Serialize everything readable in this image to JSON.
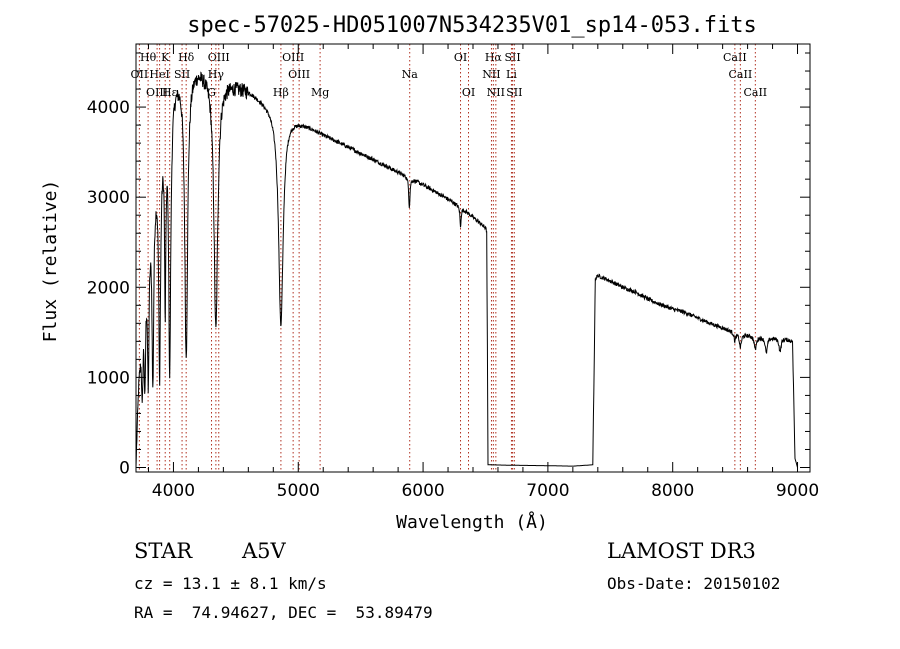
{
  "chart_data": {
    "type": "line",
    "title": "spec-57025-HD051007N534235V01_sp14-053.fits",
    "xlabel": "Wavelength (Å)",
    "ylabel": "Flux (relative)",
    "xlim": [
      3700,
      9100
    ],
    "ylim": [
      -50,
      4700
    ],
    "xticks": [
      4000,
      5000,
      6000,
      7000,
      8000,
      9000
    ],
    "yticks": [
      0,
      1000,
      2000,
      3000,
      4000
    ],
    "grid": false,
    "continuum": [
      [
        3700,
        0
      ],
      [
        3720,
        900
      ],
      [
        3760,
        1800
      ],
      [
        3800,
        2600
      ],
      [
        3840,
        3100
      ],
      [
        3880,
        3500
      ],
      [
        3920,
        3800
      ],
      [
        3960,
        4100
      ],
      [
        4000,
        4300
      ],
      [
        4050,
        4400
      ],
      [
        4100,
        4450
      ],
      [
        4200,
        4450
      ],
      [
        4300,
        4380
      ],
      [
        4400,
        4300
      ],
      [
        4500,
        4250
      ],
      [
        4600,
        4200
      ],
      [
        4700,
        4100
      ],
      [
        4800,
        4000
      ],
      [
        4900,
        3920
      ],
      [
        5000,
        3850
      ],
      [
        5100,
        3780
      ],
      [
        5200,
        3700
      ],
      [
        5300,
        3630
      ],
      [
        5400,
        3560
      ],
      [
        5500,
        3490
      ],
      [
        5600,
        3420
      ],
      [
        5700,
        3350
      ],
      [
        5800,
        3280
      ],
      [
        5900,
        3210
      ],
      [
        6000,
        3140
      ],
      [
        6100,
        3060
      ],
      [
        6200,
        2980
      ],
      [
        6300,
        2890
      ],
      [
        6400,
        2780
      ],
      [
        6500,
        2660
      ],
      [
        6510,
        2620
      ],
      [
        6520,
        30
      ],
      [
        6700,
        25
      ],
      [
        7000,
        20
      ],
      [
        7200,
        15
      ],
      [
        7360,
        30
      ],
      [
        7380,
        2100
      ],
      [
        7400,
        2130
      ],
      [
        7500,
        2070
      ],
      [
        7600,
        2000
      ],
      [
        7700,
        1950
      ],
      [
        7800,
        1870
      ],
      [
        7900,
        1810
      ],
      [
        8000,
        1760
      ],
      [
        8100,
        1720
      ],
      [
        8200,
        1660
      ],
      [
        8300,
        1600
      ],
      [
        8400,
        1550
      ],
      [
        8500,
        1500
      ],
      [
        8600,
        1470
      ],
      [
        8700,
        1450
      ],
      [
        8800,
        1440
      ],
      [
        8900,
        1430
      ],
      [
        8960,
        1400
      ],
      [
        8980,
        100
      ],
      [
        9000,
        0
      ]
    ],
    "absorption": [
      {
        "center": 3750,
        "depth": 0.55,
        "width": 6
      },
      {
        "center": 3771,
        "depth": 0.6,
        "width": 6
      },
      {
        "center": 3798,
        "depth": 0.65,
        "width": 7
      },
      {
        "center": 3835,
        "depth": 0.7,
        "width": 8
      },
      {
        "center": 3889,
        "depth": 0.72,
        "width": 9
      },
      {
        "center": 3934,
        "depth": 0.55,
        "width": 6
      },
      {
        "center": 3970,
        "depth": 0.75,
        "width": 10
      },
      {
        "center": 4102,
        "depth": 0.72,
        "width": 14
      },
      {
        "center": 4340,
        "depth": 0.65,
        "width": 18
      },
      {
        "center": 4861,
        "depth": 0.6,
        "width": 22
      },
      {
        "center": 5890,
        "depth": 0.1,
        "width": 6
      },
      {
        "center": 6300,
        "depth": 0.08,
        "width": 5
      },
      {
        "center": 8498,
        "depth": 0.06,
        "width": 8
      },
      {
        "center": 8542,
        "depth": 0.1,
        "width": 10
      },
      {
        "center": 8662,
        "depth": 0.1,
        "width": 10
      },
      {
        "center": 8750,
        "depth": 0.12,
        "width": 10
      },
      {
        "center": 8860,
        "depth": 0.1,
        "width": 10
      }
    ],
    "lines": [
      {
        "label": "Hθ",
        "x": 3797,
        "row": 0
      },
      {
        "label": "K",
        "x": 3934,
        "row": 0
      },
      {
        "label": "Hδ",
        "x": 4102,
        "row": 0
      },
      {
        "label": "OIII",
        "x": 4363,
        "row": 0
      },
      {
        "label": "OIII",
        "x": 4959,
        "row": 0
      },
      {
        "label": "OI",
        "x": 6300,
        "row": 0
      },
      {
        "label": "Hα",
        "x": 6563,
        "row": 0
      },
      {
        "label": "SII",
        "x": 6717,
        "row": 0
      },
      {
        "label": "CaII",
        "x": 8498,
        "row": 0
      },
      {
        "label": "OII",
        "x": 3727,
        "row": 1
      },
      {
        "label": "HeI",
        "x": 3889,
        "row": 1
      },
      {
        "label": "SII",
        "x": 4069,
        "row": 1
      },
      {
        "label": "Hγ",
        "x": 4340,
        "row": 1
      },
      {
        "label": "OIII",
        "x": 5007,
        "row": 1
      },
      {
        "label": "Na",
        "x": 5893,
        "row": 1
      },
      {
        "label": "NII",
        "x": 6548,
        "row": 1
      },
      {
        "label": "Li",
        "x": 6708,
        "row": 1
      },
      {
        "label": "CaII",
        "x": 8542,
        "row": 1
      },
      {
        "label": "OIII",
        "x": 3869,
        "row": 2
      },
      {
        "label": "Hε",
        "x": 3970,
        "row": 2
      },
      {
        "label": "G",
        "x": 4305,
        "row": 2
      },
      {
        "label": "Hβ",
        "x": 4861,
        "row": 2
      },
      {
        "label": "Mg",
        "x": 5175,
        "row": 2
      },
      {
        "label": "OI",
        "x": 6364,
        "row": 2
      },
      {
        "label": "NII",
        "x": 6583,
        "row": 2
      },
      {
        "label": "SII",
        "x": 6731,
        "row": 2
      },
      {
        "label": "CaII",
        "x": 8662,
        "row": 2
      }
    ]
  },
  "info": {
    "object_type": "STAR",
    "subclass": "A5V",
    "survey": "LAMOST DR3",
    "cz": "cz = 13.1 ± 8.1 km/s",
    "obs_date": "Obs-Date: 20150102",
    "coords": "RA =  74.94627, DEC =  53.89479"
  }
}
